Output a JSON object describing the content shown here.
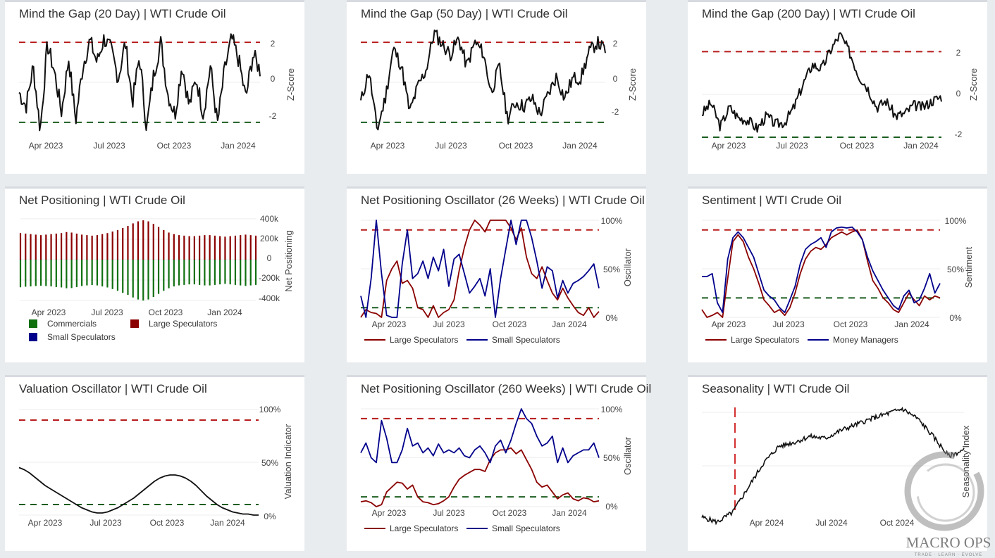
{
  "colors": {
    "red_dash": "#b71c1c",
    "green_dash": "#1b5e20",
    "black": "#111111",
    "dark_red": "#8b0000",
    "navy": "#00008b",
    "green_bar": "#107010",
    "grid": "#eeeeee"
  },
  "panels": [
    {
      "id": "gap20",
      "title": "Mind the Gap (20 Day) | WTI Crude Oil",
      "ylabel": "Z-Score",
      "y_ticks": [
        "2",
        "0",
        "-2"
      ],
      "x_ticks": [
        "Apr 2023",
        "Jul 2023",
        "Oct 2023",
        "Jan 2024"
      ],
      "chart_data": {
        "type": "line",
        "ylim": [
          -2.6,
          2.6
        ],
        "upper_band": 2,
        "lower_band": -2,
        "series": [
          {
            "name": "Z-Score",
            "color": "#111111",
            "shape": "gap20"
          }
        ]
      }
    },
    {
      "id": "gap50",
      "title": "Mind the Gap (50 Day) | WTI Crude Oil",
      "ylabel": "Z-Score",
      "y_ticks": [
        "2",
        "0",
        "-2"
      ],
      "x_ticks": [
        "Apr 2023",
        "Jul 2023",
        "Oct 2023",
        "Jan 2024"
      ],
      "chart_data": {
        "type": "line",
        "ylim": [
          -2.6,
          2.6
        ],
        "upper_band": 2,
        "lower_band": -2,
        "series": [
          {
            "name": "Z-Score",
            "color": "#111111",
            "shape": "gap50"
          }
        ]
      }
    },
    {
      "id": "gap200",
      "title": "Mind the Gap (200 Day) | WTI Crude Oil",
      "ylabel": "Z-Score",
      "y_ticks": [
        "2",
        "0",
        "-2"
      ],
      "x_ticks": [
        "Apr 2023",
        "Jul 2023",
        "Oct 2023",
        "Jan 2024"
      ],
      "chart_data": {
        "type": "line",
        "ylim": [
          -2.1,
          3.0
        ],
        "upper_band": 2,
        "lower_band": -2,
        "series": [
          {
            "name": "Z-Score",
            "color": "#111111",
            "shape": "gap200"
          }
        ]
      }
    },
    {
      "id": "netpos",
      "title": "Net Positioning | WTI Crude Oil",
      "ylabel": "Net Positioning",
      "y_ticks": [
        "400k",
        "200k",
        "0",
        "-200k",
        "-400k"
      ],
      "x_ticks": [
        "Apr 2023",
        "Jul 2023",
        "Oct 2023",
        "Jan 2024"
      ],
      "legend": [
        {
          "label": "Commercials",
          "color": "#107010",
          "kind": "box"
        },
        {
          "label": "Large Speculators",
          "color": "#8b0000",
          "kind": "box"
        },
        {
          "label": "Small Speculators",
          "color": "#00008b",
          "kind": "box"
        }
      ],
      "chart_data": {
        "type": "bar",
        "ylim": [
          -420000,
          420000
        ],
        "series": [
          {
            "name": "Large Speculators",
            "values": [
              260000,
              255000,
              250000,
              245000,
              240000,
              245000,
              250000,
              255000,
              260000,
              270000,
              265000,
              255000,
              245000,
              240000,
              235000,
              240000,
              250000,
              260000,
              275000,
              290000,
              310000,
              330000,
              355000,
              375000,
              385000,
              375000,
              350000,
              320000,
              290000,
              265000,
              250000,
              240000,
              235000,
              230000,
              230000,
              235000,
              240000,
              240000,
              235000,
              230000,
              225000,
              230000,
              235000,
              240000,
              245000,
              240000,
              235000
            ]
          },
          {
            "name": "Commercials",
            "values": [
              -270000,
              -265000,
              -262000,
              -258000,
              -255000,
              -258000,
              -262000,
              -268000,
              -272000,
              -280000,
              -278000,
              -268000,
              -258000,
              -252000,
              -248000,
              -252000,
              -262000,
              -272000,
              -288000,
              -305000,
              -325000,
              -345000,
              -370000,
              -390000,
              -400000,
              -390000,
              -365000,
              -335000,
              -305000,
              -280000,
              -262000,
              -252000,
              -247000,
              -242000,
              -242000,
              -247000,
              -252000,
              -252000,
              -247000,
              -242000,
              -237000,
              -242000,
              -247000,
              -252000,
              -257000,
              -252000,
              -247000
            ]
          }
        ]
      }
    },
    {
      "id": "npo26",
      "title": "Net Positioning Oscillator (26 Weeks) | WTI Crude Oil",
      "ylabel": "Oscillator",
      "y_ticks": [
        "100%",
        "50%",
        "0%"
      ],
      "x_ticks": [
        "Apr 2023",
        "Jul 2023",
        "Oct 2023",
        "Jan 2024"
      ],
      "legend": [
        {
          "label": "Large Speculators",
          "color": "#8b0000",
          "kind": "line"
        },
        {
          "label": "Small Speculators",
          "color": "#00008b",
          "kind": "line"
        }
      ],
      "chart_data": {
        "type": "line",
        "ylim": [
          0,
          100
        ],
        "upper_band": 90,
        "lower_band": 10,
        "series": [
          {
            "name": "Large Speculators",
            "color": "#8b0000",
            "values": [
              0,
              8,
              5,
              4,
              0,
              38,
              50,
              58,
              35,
              38,
              30,
              10,
              8,
              0,
              12,
              0,
              5,
              8,
              18,
              48,
              72,
              90,
              100,
              95,
              88,
              100,
              100,
              100,
              100,
              92,
              80,
              92,
              62,
              45,
              40,
              52,
              38,
              25,
              18,
              30,
              20,
              12,
              5,
              2,
              10,
              0,
              6
            ]
          },
          {
            "name": "Small Speculators",
            "color": "#00008b",
            "values": [
              22,
              0,
              40,
              100,
              45,
              2,
              0,
              0,
              55,
              90,
              40,
              45,
              58,
              40,
              62,
              48,
              70,
              32,
              60,
              65,
              45,
              25,
              32,
              40,
              22,
              50,
              0,
              40,
              70,
              100,
              75,
              100,
              100,
              82,
              58,
              30,
              52,
              48,
              20,
              38,
              25,
              35,
              38,
              42,
              48,
              55,
              30
            ]
          }
        ]
      }
    },
    {
      "id": "sentiment",
      "title": "Sentiment | WTI Crude Oil",
      "ylabel": "Sentiment",
      "y_ticks": [
        "100%",
        "50%",
        "0%"
      ],
      "x_ticks": [
        "Apr 2023",
        "Jul 2023",
        "Oct 2023",
        "Jan 2024"
      ],
      "legend": [
        {
          "label": "Large Speculators",
          "color": "#8b0000",
          "kind": "line"
        },
        {
          "label": "Money Managers",
          "color": "#00008b",
          "kind": "line"
        }
      ],
      "chart_data": {
        "type": "line",
        "ylim": [
          0,
          100
        ],
        "upper_band": 90,
        "lower_band": 20,
        "series": [
          {
            "name": "Large Speculators",
            "color": "#8b0000",
            "values": [
              8,
              0,
              2,
              5,
              0,
              40,
              78,
              85,
              78,
              62,
              50,
              35,
              18,
              12,
              5,
              8,
              2,
              10,
              25,
              45,
              60,
              68,
              72,
              70,
              75,
              82,
              85,
              88,
              85,
              88,
              90,
              80,
              58,
              38,
              30,
              20,
              15,
              8,
              5,
              15,
              25,
              18,
              12,
              22,
              18,
              22,
              20
            ]
          },
          {
            "name": "Money Managers",
            "color": "#00008b",
            "values": [
              42,
              42,
              45,
              15,
              5,
              60,
              82,
              88,
              82,
              72,
              62,
              45,
              28,
              22,
              18,
              10,
              5,
              18,
              32,
              55,
              70,
              75,
              78,
              82,
              72,
              88,
              92,
              93,
              92,
              93,
              88,
              80,
              62,
              48,
              38,
              28,
              20,
              12,
              8,
              22,
              28,
              15,
              18,
              30,
              45,
              25,
              35
            ]
          }
        ]
      }
    },
    {
      "id": "valuation",
      "title": "Valuation Oscillator | WTI Crude Oil",
      "ylabel": "Valuation Indicator",
      "y_ticks": [
        "100%",
        "50%",
        "0%"
      ],
      "x_ticks": [
        "Apr 2023",
        "Jul 2023",
        "Oct 2023",
        "Jan 2024"
      ],
      "chart_data": {
        "type": "line",
        "ylim": [
          0,
          100
        ],
        "upper_band": 90,
        "lower_band": 10,
        "series": [
          {
            "name": "Valuation",
            "color": "#111111",
            "values": [
              45,
              43,
              40,
              36,
              32,
              28,
              25,
              22,
              19,
              16,
              13,
              10,
              7,
              5,
              3,
              2,
              2,
              3,
              5,
              7,
              10,
              13,
              16,
              20,
              24,
              28,
              32,
              35,
              37,
              38,
              38,
              37,
              35,
              32,
              28,
              23,
              18,
              14,
              10,
              7,
              5,
              3,
              2,
              1,
              1,
              0,
              0
            ]
          }
        ]
      }
    },
    {
      "id": "npo260",
      "title": "Net Positioning Oscillator (260 Weeks) | WTI Crude Oil",
      "ylabel": "Oscillator",
      "y_ticks": [
        "100%",
        "50%",
        "0%"
      ],
      "x_ticks": [
        "Apr 2023",
        "Jul 2023",
        "Oct 2023",
        "Jan 2024"
      ],
      "legend": [
        {
          "label": "Large Speculators",
          "color": "#8b0000",
          "kind": "line"
        },
        {
          "label": "Small Speculators",
          "color": "#00008b",
          "kind": "line"
        }
      ],
      "chart_data": {
        "type": "line",
        "ylim": [
          0,
          100
        ],
        "upper_band": 90,
        "lower_band": 10,
        "series": [
          {
            "name": "Large Speculators",
            "color": "#8b0000",
            "values": [
              5,
              6,
              4,
              0,
              2,
              15,
              20,
              25,
              24,
              18,
              22,
              10,
              5,
              4,
              2,
              3,
              6,
              10,
              20,
              28,
              32,
              35,
              38,
              38,
              36,
              48,
              55,
              58,
              58,
              60,
              54,
              58,
              48,
              38,
              25,
              20,
              22,
              15,
              8,
              12,
              14,
              8,
              6,
              9,
              8,
              5,
              6
            ]
          },
          {
            "name": "Small Speculators",
            "color": "#00008b",
            "values": [
              55,
              65,
              50,
              45,
              88,
              70,
              45,
              45,
              58,
              80,
              62,
              65,
              55,
              60,
              52,
              64,
              55,
              58,
              55,
              60,
              52,
              50,
              58,
              62,
              55,
              45,
              62,
              68,
              55,
              68,
              85,
              100,
              90,
              85,
              72,
              62,
              65,
              72,
              45,
              60,
              45,
              52,
              55,
              58,
              58,
              65,
              50
            ]
          }
        ]
      }
    },
    {
      "id": "seasonality",
      "title": "Seasonality | WTI Crude Oil",
      "ylabel": "Seasonality Index",
      "x_ticks": [
        "Apr 2024",
        "Jul 2024",
        "Oct 2024"
      ],
      "chart_data": {
        "type": "line",
        "marker_date": "today",
        "series": [
          {
            "name": "Seasonality Index",
            "color": "#111111",
            "shape": "season"
          }
        ]
      }
    }
  ],
  "watermark": {
    "text": "MACRO OPS",
    "tagline": "TRADE · LEARN · EVOLVE"
  }
}
